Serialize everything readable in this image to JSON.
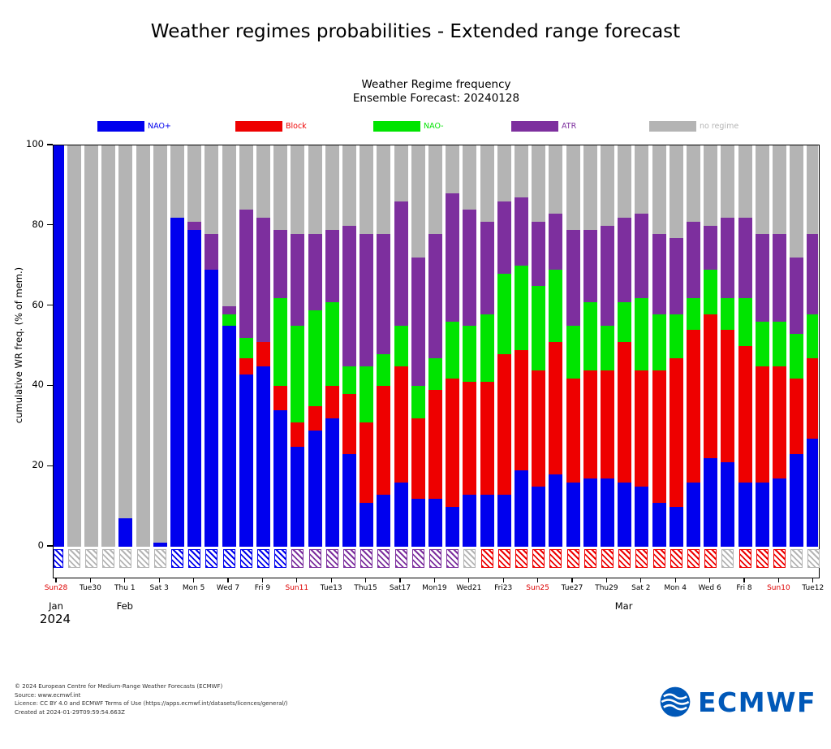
{
  "page_title": "Weather regimes probabilities - Extended range forecast",
  "chart_data": {
    "type": "bar",
    "stacked": true,
    "title": "Weather Regime frequency",
    "subtitle": "Ensemble Forecast: 20240128",
    "xlabel": "",
    "ylabel": "cumulative WR freq. (% of mem.)",
    "ylim": [
      0,
      100
    ],
    "yticks": [
      0,
      20,
      40,
      60,
      80,
      100
    ],
    "legend_position": "top",
    "grid": false,
    "series_order": [
      "NAO+",
      "Block",
      "NAO-",
      "ATR",
      "no regime"
    ],
    "colors": {
      "NAO+": "#0000ee",
      "Block": "#ee0000",
      "NAO-": "#00e400",
      "ATR": "#7d2f9e",
      "no regime": "#b4b4b4"
    },
    "sunday_label_color": "#dd0000",
    "year": "2024",
    "months": [
      {
        "text": "Jan",
        "day_index": 0
      },
      {
        "text": "Feb",
        "day_index": 4
      },
      {
        "text": "Mar",
        "day_index": 33
      }
    ],
    "days": [
      {
        "date": "Jan 28",
        "label": "Sun28",
        "sunday": true,
        "values": [
          100,
          0,
          0,
          0
        ],
        "dominant": "NAO+"
      },
      {
        "date": "Jan 29",
        "label": "",
        "sunday": false,
        "values": [
          0,
          0,
          0,
          0
        ],
        "dominant": "none"
      },
      {
        "date": "Jan 30",
        "label": "Tue30",
        "sunday": false,
        "values": [
          0,
          0,
          0,
          0
        ],
        "dominant": "none"
      },
      {
        "date": "Jan 31",
        "label": "",
        "sunday": false,
        "values": [
          0,
          0,
          0,
          0
        ],
        "dominant": "none"
      },
      {
        "date": "Feb 1",
        "label": "Thu 1",
        "sunday": false,
        "values": [
          7,
          0,
          0,
          0
        ],
        "dominant": "none"
      },
      {
        "date": "Feb 2",
        "label": "",
        "sunday": false,
        "values": [
          0,
          0,
          0,
          0
        ],
        "dominant": "none"
      },
      {
        "date": "Feb 3",
        "label": "Sat 3",
        "sunday": false,
        "values": [
          1,
          0,
          0,
          0
        ],
        "dominant": "none"
      },
      {
        "date": "Feb 4",
        "label": "",
        "sunday": false,
        "values": [
          82,
          0,
          0,
          0
        ],
        "dominant": "NAO+"
      },
      {
        "date": "Feb 5",
        "label": "Mon 5",
        "sunday": false,
        "values": [
          79,
          0,
          0,
          2
        ],
        "dominant": "NAO+"
      },
      {
        "date": "Feb 6",
        "label": "",
        "sunday": false,
        "values": [
          69,
          0,
          0,
          9
        ],
        "dominant": "NAO+"
      },
      {
        "date": "Feb 7",
        "label": "Wed 7",
        "sunday": false,
        "values": [
          55,
          0,
          3,
          2
        ],
        "dominant": "NAO+"
      },
      {
        "date": "Feb 8",
        "label": "",
        "sunday": false,
        "values": [
          43,
          4,
          5,
          32
        ],
        "dominant": "NAO+"
      },
      {
        "date": "Feb 9",
        "label": "Fri 9",
        "sunday": false,
        "values": [
          45,
          6,
          0,
          31
        ],
        "dominant": "NAO+"
      },
      {
        "date": "Feb 10",
        "label": "",
        "sunday": false,
        "values": [
          34,
          6,
          22,
          17
        ],
        "dominant": "NAO+"
      },
      {
        "date": "Feb 11",
        "label": "Sun11",
        "sunday": true,
        "values": [
          25,
          6,
          24,
          23
        ],
        "dominant": "ATR"
      },
      {
        "date": "Feb 12",
        "label": "",
        "sunday": false,
        "values": [
          29,
          6,
          24,
          19
        ],
        "dominant": "ATR"
      },
      {
        "date": "Feb 13",
        "label": "Tue13",
        "sunday": false,
        "values": [
          32,
          8,
          21,
          18
        ],
        "dominant": "ATR"
      },
      {
        "date": "Feb 14",
        "label": "",
        "sunday": false,
        "values": [
          23,
          15,
          7,
          35
        ],
        "dominant": "ATR"
      },
      {
        "date": "Feb 15",
        "label": "Thu15",
        "sunday": false,
        "values": [
          11,
          20,
          14,
          33
        ],
        "dominant": "ATR"
      },
      {
        "date": "Feb 16",
        "label": "",
        "sunday": false,
        "values": [
          13,
          27,
          8,
          30
        ],
        "dominant": "ATR"
      },
      {
        "date": "Feb 17",
        "label": "Sat17",
        "sunday": false,
        "values": [
          16,
          29,
          10,
          31
        ],
        "dominant": "ATR"
      },
      {
        "date": "Feb 18",
        "label": "",
        "sunday": false,
        "values": [
          12,
          20,
          8,
          32
        ],
        "dominant": "ATR"
      },
      {
        "date": "Feb 19",
        "label": "Mon19",
        "sunday": false,
        "values": [
          12,
          27,
          8,
          31
        ],
        "dominant": "ATR"
      },
      {
        "date": "Feb 20",
        "label": "",
        "sunday": false,
        "values": [
          10,
          32,
          14,
          32
        ],
        "dominant": "ATR"
      },
      {
        "date": "Feb 21",
        "label": "Wed21",
        "sunday": false,
        "values": [
          13,
          28,
          14,
          29
        ],
        "dominant": "none"
      },
      {
        "date": "Feb 22",
        "label": "",
        "sunday": false,
        "values": [
          13,
          28,
          17,
          23
        ],
        "dominant": "Block"
      },
      {
        "date": "Feb 23",
        "label": "Fri23",
        "sunday": false,
        "values": [
          13,
          35,
          20,
          18
        ],
        "dominant": "Block"
      },
      {
        "date": "Feb 24",
        "label": "",
        "sunday": false,
        "values": [
          19,
          30,
          21,
          17
        ],
        "dominant": "Block"
      },
      {
        "date": "Feb 25",
        "label": "Sun25",
        "sunday": true,
        "values": [
          15,
          29,
          21,
          16
        ],
        "dominant": "Block"
      },
      {
        "date": "Feb 26",
        "label": "",
        "sunday": false,
        "values": [
          18,
          33,
          18,
          14
        ],
        "dominant": "Block"
      },
      {
        "date": "Feb 27",
        "label": "Tue27",
        "sunday": false,
        "values": [
          16,
          26,
          13,
          24
        ],
        "dominant": "Block"
      },
      {
        "date": "Feb 28",
        "label": "",
        "sunday": false,
        "values": [
          17,
          27,
          17,
          18
        ],
        "dominant": "Block"
      },
      {
        "date": "Feb 29",
        "label": "Thu29",
        "sunday": false,
        "values": [
          17,
          27,
          11,
          25
        ],
        "dominant": "Block"
      },
      {
        "date": "Mar 1",
        "label": "",
        "sunday": false,
        "values": [
          16,
          35,
          10,
          21
        ],
        "dominant": "Block"
      },
      {
        "date": "Mar 2",
        "label": "Sat 2",
        "sunday": false,
        "values": [
          15,
          29,
          18,
          21
        ],
        "dominant": "Block"
      },
      {
        "date": "Mar 3",
        "label": "",
        "sunday": false,
        "values": [
          11,
          33,
          14,
          20
        ],
        "dominant": "Block"
      },
      {
        "date": "Mar 4",
        "label": "Mon 4",
        "sunday": false,
        "values": [
          10,
          37,
          11,
          19
        ],
        "dominant": "Block"
      },
      {
        "date": "Mar 5",
        "label": "",
        "sunday": false,
        "values": [
          16,
          38,
          8,
          19
        ],
        "dominant": "Block"
      },
      {
        "date": "Mar 6",
        "label": "Wed 6",
        "sunday": false,
        "values": [
          22,
          36,
          11,
          11
        ],
        "dominant": "Block"
      },
      {
        "date": "Mar 7",
        "label": "",
        "sunday": false,
        "values": [
          21,
          33,
          8,
          20
        ],
        "dominant": "none"
      },
      {
        "date": "Mar 8",
        "label": "Fri 8",
        "sunday": false,
        "values": [
          16,
          34,
          12,
          20
        ],
        "dominant": "Block"
      },
      {
        "date": "Mar 9",
        "label": "",
        "sunday": false,
        "values": [
          16,
          29,
          11,
          22
        ],
        "dominant": "Block"
      },
      {
        "date": "Mar 10",
        "label": "Sun10",
        "sunday": true,
        "values": [
          17,
          28,
          11,
          22
        ],
        "dominant": "Block"
      },
      {
        "date": "Mar 11",
        "label": "",
        "sunday": false,
        "values": [
          23,
          19,
          11,
          19
        ],
        "dominant": "none"
      },
      {
        "date": "Mar 12",
        "label": "Tue12",
        "sunday": false,
        "values": [
          27,
          20,
          11,
          20
        ],
        "dominant": "none"
      }
    ]
  },
  "footer": {
    "lines": [
      "© 2024 European Centre for Medium-Range Weather Forecasts (ECMWF)",
      "Source: www.ecmwf.int",
      "Licence: CC BY 4.0 and ECMWF Terms of Use (https://apps.ecmwf.int/datasets/licences/general/)",
      "Created at 2024-01-29T09:59:54.663Z"
    ]
  },
  "logo": {
    "text": "ECMWF"
  }
}
